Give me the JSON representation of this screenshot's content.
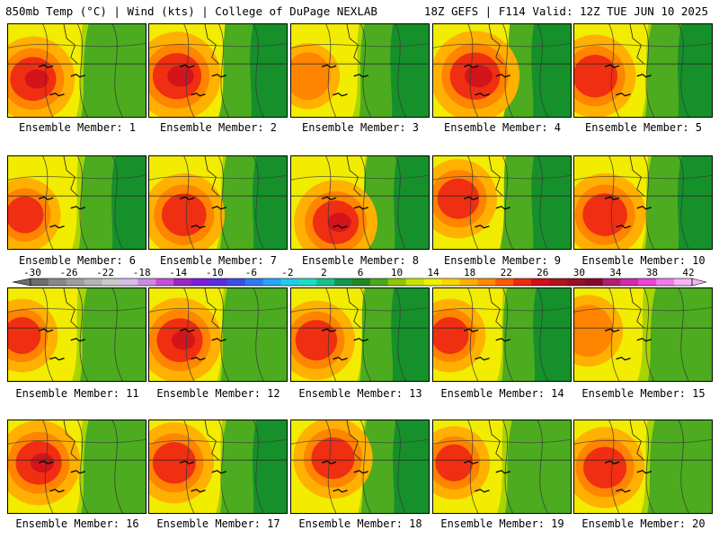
{
  "header": {
    "left": "850mb Temp (°C) | Wind (kts) | College of DuPage NEXLAB",
    "right": "18Z GEFS | F114 Valid: 12Z TUE JUN 10 2025"
  },
  "panels": [
    {
      "label": "Ensemble Member: 1",
      "hot": 0.85,
      "hotx": 0.18,
      "hoty": 0.58,
      "cool": 0.35
    },
    {
      "label": "Ensemble Member: 2",
      "hot": 0.95,
      "hotx": 0.2,
      "hoty": 0.55,
      "cool": 0.7
    },
    {
      "label": "Ensemble Member: 3",
      "hot": 0.35,
      "hotx": 0.12,
      "hoty": 0.55,
      "cool": 0.8
    },
    {
      "label": "Ensemble Member: 4",
      "hot": 1.0,
      "hotx": 0.3,
      "hoty": 0.55,
      "cool": 0.85
    },
    {
      "label": "Ensemble Member: 5",
      "hot": 0.8,
      "hotx": 0.15,
      "hoty": 0.55,
      "cool": 0.55
    },
    {
      "label": "Ensemble Member: 6",
      "hot": 0.55,
      "hotx": 0.12,
      "hoty": 0.62,
      "cool": 0.55
    },
    {
      "label": "Ensemble Member: 7",
      "hot": 0.8,
      "hotx": 0.25,
      "hoty": 0.62,
      "cool": 0.55
    },
    {
      "label": "Ensemble Member: 8",
      "hot": 0.85,
      "hotx": 0.32,
      "hoty": 0.7,
      "cool": 0.6
    },
    {
      "label": "Ensemble Member: 9",
      "hot": 0.7,
      "hotx": 0.18,
      "hoty": 0.45,
      "cool": 0.85
    },
    {
      "label": "Ensemble Member: 10",
      "hot": 0.8,
      "hotx": 0.22,
      "hoty": 0.62,
      "cool": 0.55
    },
    {
      "label": "Ensemble Member: 11",
      "hot": 0.55,
      "hotx": 0.1,
      "hoty": 0.5,
      "cool": 0.45
    },
    {
      "label": "Ensemble Member: 12",
      "hot": 0.85,
      "hotx": 0.22,
      "hoty": 0.55,
      "cool": 0.5
    },
    {
      "label": "Ensemble Member: 13",
      "hot": 0.7,
      "hotx": 0.18,
      "hoty": 0.55,
      "cool": 0.75
    },
    {
      "label": "Ensemble Member: 14",
      "hot": 0.55,
      "hotx": 0.12,
      "hoty": 0.5,
      "cool": 0.75
    },
    {
      "label": "Ensemble Member: 15",
      "hot": 0.5,
      "hotx": 0.1,
      "hoty": 0.45,
      "cool": 0.3
    },
    {
      "label": "Ensemble Member: 16",
      "hot": 0.85,
      "hotx": 0.22,
      "hoty": 0.45,
      "cool": 0.35
    },
    {
      "label": "Ensemble Member: 17",
      "hot": 0.75,
      "hotx": 0.18,
      "hoty": 0.45,
      "cool": 0.55
    },
    {
      "label": "Ensemble Member: 18",
      "hot": 0.75,
      "hotx": 0.3,
      "hoty": 0.4,
      "cool": 0.65
    },
    {
      "label": "Ensemble Member: 19",
      "hot": 0.55,
      "hotx": 0.15,
      "hoty": 0.45,
      "cool": 0.45
    },
    {
      "label": "Ensemble Member: 20",
      "hot": 0.75,
      "hotx": 0.22,
      "hoty": 0.5,
      "cool": 0.35
    }
  ],
  "colorbar": {
    "ticks": [
      "-30",
      "-26",
      "-22",
      "-18",
      "-14",
      "-10",
      "-6",
      "-2",
      "2",
      "6",
      "10",
      "14",
      "18",
      "22",
      "26",
      "30",
      "34",
      "38",
      "42"
    ],
    "colors": [
      "#6c6c6c",
      "#888888",
      "#9e9e9e",
      "#b4b4b4",
      "#c9c9c9",
      "#d6bce6",
      "#c98be0",
      "#c54fdc",
      "#9a26c4",
      "#7a1fd8",
      "#5a2de0",
      "#3b50e6",
      "#2b7cf2",
      "#24a6f5",
      "#22cbe8",
      "#1fdcc4",
      "#19c28c",
      "#0f9a4e",
      "#1e8a24",
      "#4aa81a",
      "#8ec800",
      "#c6e300",
      "#f0f000",
      "#ffd400",
      "#ffae00",
      "#ff8a00",
      "#ff5a0a",
      "#ee2a10",
      "#d0101a",
      "#b0141a",
      "#9a0e24",
      "#88082c",
      "#b01e70",
      "#d428a8",
      "#ec44d4",
      "#f27aea",
      "#f6b4f2"
    ],
    "palette": {
      "green_dark": "#15902a",
      "green": "#4cab1f",
      "yellowgreen": "#a8d400",
      "yellow": "#f1ec00",
      "orange": "#ffb000",
      "orange_dark": "#ff8400",
      "red": "#f02e12",
      "deep_red": "#d3141a",
      "contour": "#3a3a3a"
    }
  }
}
